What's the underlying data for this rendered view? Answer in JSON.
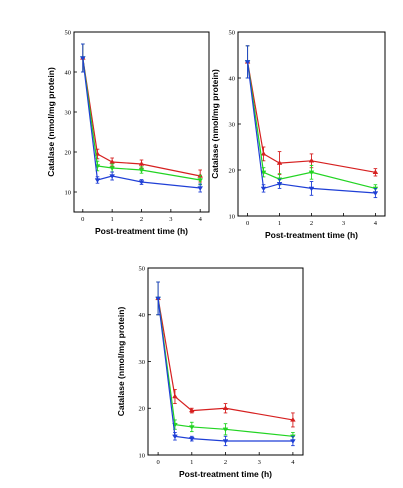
{
  "colors": {
    "red": "#d62020",
    "green": "#22d422",
    "blue": "#1f3fd6",
    "axis": "#000000"
  },
  "chart_data": [
    {
      "type": "line",
      "xlabel": "Post-treatment time (h)",
      "ylabel": "Catalase (nmol/mg protein)",
      "xlim": [
        -0.3,
        4.3
      ],
      "ylim": [
        5,
        50
      ],
      "xticks": [
        0,
        1,
        2,
        3,
        4
      ],
      "yticks": [
        10,
        20,
        30,
        40,
        50
      ],
      "x": [
        0,
        0.5,
        1,
        2,
        4
      ],
      "series": [
        {
          "color": "red",
          "values": [
            43.5,
            19.5,
            17.5,
            17,
            14
          ],
          "errors": [
            3.5,
            1.2,
            1.0,
            1.0,
            1.5
          ]
        },
        {
          "color": "green",
          "values": [
            43.5,
            16.5,
            16,
            15.5,
            13
          ],
          "errors": [
            3.5,
            1.2,
            1.0,
            0.8,
            1.2
          ]
        },
        {
          "color": "blue",
          "values": [
            43.5,
            13,
            14,
            12.5,
            11
          ],
          "errors": [
            3.5,
            0.8,
            1.0,
            0.6,
            1.0
          ]
        }
      ]
    },
    {
      "type": "line",
      "xlabel": "Post-treatment time (h)",
      "ylabel": "Catalase (nmol/mg protein)",
      "xlim": [
        -0.3,
        4.3
      ],
      "ylim": [
        10,
        50
      ],
      "xticks": [
        0,
        1,
        2,
        3,
        4
      ],
      "yticks": [
        10,
        20,
        30,
        40,
        50
      ],
      "x": [
        0,
        0.5,
        1,
        2,
        4
      ],
      "series": [
        {
          "color": "red",
          "values": [
            43.5,
            23.5,
            21.5,
            22,
            19.5
          ],
          "errors": [
            3.5,
            1.5,
            2.5,
            1.5,
            0.8
          ]
        },
        {
          "color": "green",
          "values": [
            43.5,
            19.5,
            18,
            19.5,
            16
          ],
          "errors": [
            3.5,
            1.0,
            1.2,
            1.5,
            0.8
          ]
        },
        {
          "color": "blue",
          "values": [
            43.5,
            16,
            17,
            16,
            15
          ],
          "errors": [
            3.5,
            0.8,
            1.0,
            1.5,
            1.0
          ]
        }
      ]
    },
    {
      "type": "line",
      "xlabel": "Post-treatment time (h)",
      "ylabel": "Catalase (nmol/mg protein)",
      "xlim": [
        -0.3,
        4.3
      ],
      "ylim": [
        10,
        50
      ],
      "xticks": [
        0,
        1,
        2,
        3,
        4
      ],
      "yticks": [
        10,
        20,
        30,
        40,
        50
      ],
      "x": [
        0,
        0.5,
        1,
        2,
        4
      ],
      "series": [
        {
          "color": "red",
          "values": [
            43.5,
            22.5,
            19.5,
            20,
            17.5
          ],
          "errors": [
            3.5,
            1.5,
            0.5,
            1.0,
            1.5
          ]
        },
        {
          "color": "green",
          "values": [
            43.5,
            16.5,
            16,
            15.5,
            14
          ],
          "errors": [
            3.5,
            1.0,
            1.0,
            1.2,
            0.8
          ]
        },
        {
          "color": "blue",
          "values": [
            43.5,
            14,
            13.5,
            13,
            13
          ],
          "errors": [
            3.5,
            0.8,
            0.5,
            1.0,
            1.0
          ]
        }
      ]
    }
  ]
}
